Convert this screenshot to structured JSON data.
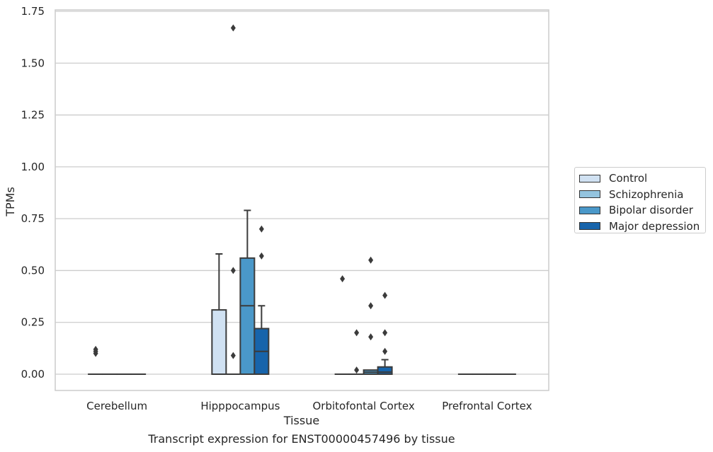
{
  "chart_data": {
    "type": "box",
    "title": "Transcript expression for ENST00000457496 by tissue",
    "xlabel": "Tissue",
    "ylabel": "TPMs",
    "categories": [
      "Cerebellum",
      "Hipppocampus",
      "Orbitofontal Cortex",
      "Prefrontal Cortex"
    ],
    "ylim": [
      -0.08,
      1.76
    ],
    "yticks": [
      "0.00",
      "0.25",
      "0.50",
      "0.75",
      "1.00",
      "1.25",
      "1.50",
      "1.75"
    ],
    "ytick_values": [
      0,
      0.25,
      0.5,
      0.75,
      1.0,
      1.25,
      1.5,
      1.75
    ],
    "grid": "horizontal",
    "legend_position": "right",
    "series": [
      {
        "name": "Control",
        "color": "#d0e1f2",
        "boxes": [
          {
            "q1": 0,
            "median": 0,
            "q3": 0,
            "whisker_low": 0,
            "whisker_high": 0,
            "outliers": [
              0.1,
              0.11,
              0.12
            ]
          },
          {
            "q1": 0,
            "median": 0,
            "q3": 0.31,
            "whisker_low": 0,
            "whisker_high": 0.58,
            "outliers": []
          },
          {
            "q1": 0,
            "median": 0,
            "q3": 0,
            "whisker_low": 0,
            "whisker_high": 0,
            "outliers": [
              0.46
            ]
          },
          {
            "q1": 0,
            "median": 0,
            "q3": 0,
            "whisker_low": 0,
            "whisker_high": 0,
            "outliers": []
          }
        ]
      },
      {
        "name": "Schizophrenia",
        "color": "#94c4df",
        "boxes": [
          {
            "q1": 0,
            "median": 0,
            "q3": 0,
            "whisker_low": 0,
            "whisker_high": 0,
            "outliers": []
          },
          {
            "q1": 0,
            "median": 0,
            "q3": 0,
            "whisker_low": 0,
            "whisker_high": 0,
            "outliers": [
              1.67,
              0.5,
              0.09
            ]
          },
          {
            "q1": 0,
            "median": 0,
            "q3": 0,
            "whisker_low": 0,
            "whisker_high": 0,
            "outliers": [
              0.2,
              0.02
            ]
          },
          {
            "q1": 0,
            "median": 0,
            "q3": 0,
            "whisker_low": 0,
            "whisker_high": 0,
            "outliers": []
          }
        ]
      },
      {
        "name": "Bipolar disorder",
        "color": "#4a98c9",
        "boxes": [
          {
            "q1": 0,
            "median": 0,
            "q3": 0,
            "whisker_low": 0,
            "whisker_high": 0,
            "outliers": []
          },
          {
            "q1": 0,
            "median": 0.33,
            "q3": 0.56,
            "whisker_low": 0,
            "whisker_high": 0.79,
            "outliers": []
          },
          {
            "q1": 0,
            "median": 0.01,
            "q3": 0.02,
            "whisker_low": 0,
            "whisker_high": 0.02,
            "outliers": [
              0.55,
              0.33,
              0.18
            ]
          },
          {
            "q1": 0,
            "median": 0,
            "q3": 0,
            "whisker_low": 0,
            "whisker_high": 0,
            "outliers": []
          }
        ]
      },
      {
        "name": "Major depression",
        "color": "#1764ab",
        "boxes": [
          {
            "q1": 0,
            "median": 0,
            "q3": 0,
            "whisker_low": 0,
            "whisker_high": 0,
            "outliers": []
          },
          {
            "q1": 0,
            "median": 0.11,
            "q3": 0.22,
            "whisker_low": 0,
            "whisker_high": 0.33,
            "outliers": [
              0.7,
              0.57
            ]
          },
          {
            "q1": 0,
            "median": 0.01,
            "q3": 0.035,
            "whisker_low": 0,
            "whisker_high": 0.07,
            "outliers": [
              0.38,
              0.2,
              0.11
            ]
          },
          {
            "q1": 0,
            "median": 0,
            "q3": 0,
            "whisker_low": 0,
            "whisker_high": 0,
            "outliers": []
          }
        ]
      }
    ]
  }
}
